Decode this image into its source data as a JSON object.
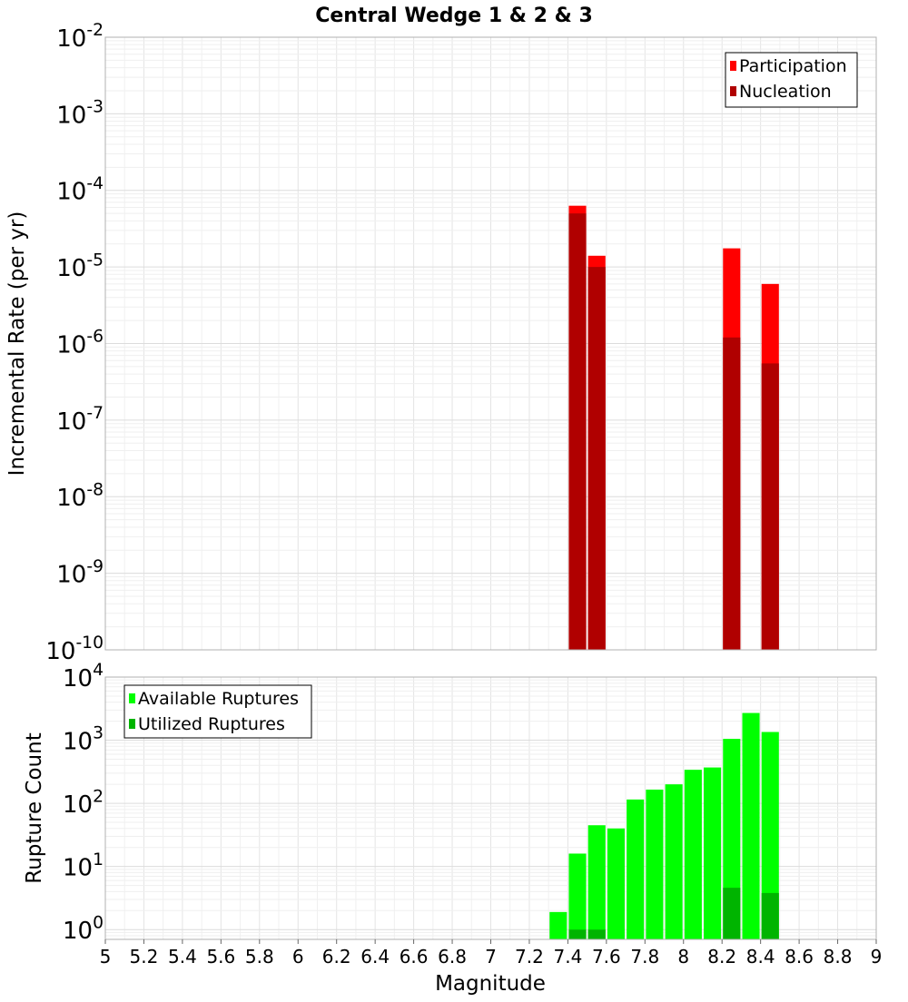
{
  "chart_data": [
    {
      "type": "bar",
      "title": "Central Wedge 1 & 2 & 3",
      "xlabel": "",
      "ylabel": "Incremental Rate (per yr)",
      "y_scale": "log",
      "ylim": [
        1e-10,
        0.01
      ],
      "y_tick_labels": [
        {
          "base": "10",
          "exp": "-10"
        },
        {
          "base": "10",
          "exp": "-9"
        },
        {
          "base": "10",
          "exp": "-8"
        },
        {
          "base": "10",
          "exp": "-7"
        },
        {
          "base": "10",
          "exp": "-6"
        },
        {
          "base": "10",
          "exp": "-5"
        },
        {
          "base": "10",
          "exp": "-4"
        },
        {
          "base": "10",
          "exp": "-3"
        },
        {
          "base": "10",
          "exp": "-2"
        }
      ],
      "grid": true,
      "legend_position": "top-right",
      "bar_width": 0.09,
      "series": [
        {
          "name": "Participation",
          "color": "#ff0000",
          "points": [
            {
              "x": 7.45,
              "y": 6.3e-05
            },
            {
              "x": 7.55,
              "y": 1.4e-05
            },
            {
              "x": 8.25,
              "y": 1.75e-05
            },
            {
              "x": 8.45,
              "y": 6e-06
            }
          ]
        },
        {
          "name": "Nucleation",
          "color": "#b00000",
          "points": [
            {
              "x": 7.45,
              "y": 5e-05
            },
            {
              "x": 7.55,
              "y": 1e-05
            },
            {
              "x": 8.25,
              "y": 1.2e-06
            },
            {
              "x": 8.45,
              "y": 5.5e-07
            }
          ]
        }
      ]
    },
    {
      "type": "bar",
      "title": "",
      "xlabel": "Magnitude",
      "ylabel": "Rupture Count",
      "y_scale": "log",
      "ylim": [
        0.7,
        10000
      ],
      "xlim": [
        5,
        9
      ],
      "x_tick_labels": [
        "5",
        "5.2",
        "5.4",
        "5.6",
        "5.8",
        "6",
        "6.2",
        "6.4",
        "6.6",
        "6.8",
        "7",
        "7.2",
        "7.4",
        "7.6",
        "7.8",
        "8",
        "8.2",
        "8.4",
        "8.6",
        "8.8",
        "9"
      ],
      "y_tick_labels": [
        {
          "base": "10",
          "exp": "0"
        },
        {
          "base": "10",
          "exp": "1"
        },
        {
          "base": "10",
          "exp": "2"
        },
        {
          "base": "10",
          "exp": "3"
        },
        {
          "base": "10",
          "exp": "4"
        }
      ],
      "grid": true,
      "legend_position": "top-left",
      "bar_width": 0.09,
      "series": [
        {
          "name": "Available Ruptures",
          "color": "#00ff00",
          "points": [
            {
              "x": 7.35,
              "y": 1.9
            },
            {
              "x": 7.45,
              "y": 16
            },
            {
              "x": 7.55,
              "y": 45
            },
            {
              "x": 7.65,
              "y": 40
            },
            {
              "x": 7.75,
              "y": 115
            },
            {
              "x": 7.85,
              "y": 165
            },
            {
              "x": 7.95,
              "y": 200
            },
            {
              "x": 8.05,
              "y": 340
            },
            {
              "x": 8.15,
              "y": 370
            },
            {
              "x": 8.25,
              "y": 1050
            },
            {
              "x": 8.35,
              "y": 2700
            },
            {
              "x": 8.45,
              "y": 1350
            }
          ]
        },
        {
          "name": "Utilized Ruptures",
          "color": "#00b400",
          "points": [
            {
              "x": 7.45,
              "y": 1
            },
            {
              "x": 7.55,
              "y": 1
            },
            {
              "x": 8.25,
              "y": 4.6
            },
            {
              "x": 8.45,
              "y": 3.8
            }
          ]
        }
      ]
    }
  ]
}
